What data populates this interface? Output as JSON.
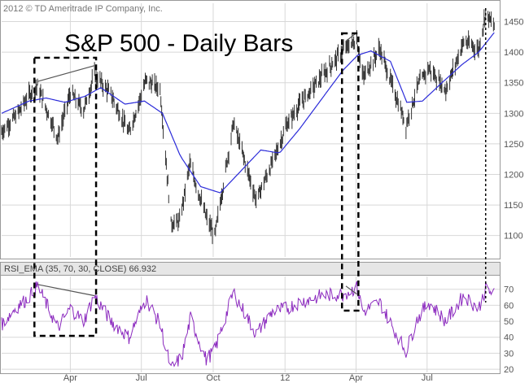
{
  "copyright": "2012 © TD Ameritrade IP Company, Inc.",
  "colors": {
    "price_bars": "#333333",
    "ema": "#2b2bd9",
    "rsi": "#8c2bbf",
    "frame": "#000000",
    "grid": "#d8d8d8"
  },
  "chart_data": [
    {
      "type": "line",
      "title": "S&P 500 - Daily Bars",
      "x_ticks": [
        "Apr",
        "Jul",
        "Oct",
        "12",
        "Apr",
        "Jul"
      ],
      "y_ticks": [
        "1450",
        "1400",
        "1350",
        "1300",
        "1250",
        "1200",
        "1150",
        "1100"
      ],
      "ylim": [
        1065,
        1480
      ],
      "grid": true,
      "series": [
        {
          "role": "close",
          "x": [
            "2011-01-03",
            "2011-01-24",
            "2011-02-07",
            "2011-02-18",
            "2011-03-16",
            "2011-04-01",
            "2011-04-18",
            "2011-05-02",
            "2011-05-23",
            "2011-06-15",
            "2011-07-07",
            "2011-07-25",
            "2011-08-08",
            "2011-08-19",
            "2011-09-01",
            "2011-09-22",
            "2011-10-03",
            "2011-10-27",
            "2011-11-25",
            "2011-12-16",
            "2012-01-03",
            "2012-01-20",
            "2012-02-17",
            "2012-03-16",
            "2012-04-02",
            "2012-04-10",
            "2012-05-01",
            "2012-06-04",
            "2012-06-19",
            "2012-07-03",
            "2012-07-25",
            "2012-08-17",
            "2012-09-05",
            "2012-09-14",
            "2012-09-25"
          ],
          "values": [
            1270,
            1300,
            1330,
            1344,
            1260,
            1333,
            1305,
            1364,
            1330,
            1268,
            1354,
            1340,
            1120,
            1123,
            1217,
            1130,
            1099,
            1285,
            1158,
            1220,
            1280,
            1315,
            1360,
            1404,
            1420,
            1358,
            1406,
            1280,
            1345,
            1374,
            1338,
            1418,
            1404,
            1465,
            1441
          ]
        },
        {
          "role": "ema",
          "x": [
            "2011-01-03",
            "2011-02-07",
            "2011-03-01",
            "2011-03-25",
            "2011-04-20",
            "2011-05-10",
            "2011-06-10",
            "2011-07-05",
            "2011-07-28",
            "2011-08-20",
            "2011-09-15",
            "2011-10-10",
            "2011-11-05",
            "2011-12-01",
            "2011-12-25",
            "2012-01-20",
            "2012-02-15",
            "2012-03-15",
            "2012-04-03",
            "2012-04-20",
            "2012-05-15",
            "2012-06-05",
            "2012-06-25",
            "2012-07-20",
            "2012-08-15",
            "2012-09-05",
            "2012-09-25"
          ],
          "values": [
            1300,
            1320,
            1325,
            1318,
            1328,
            1342,
            1315,
            1320,
            1300,
            1230,
            1180,
            1170,
            1205,
            1240,
            1235,
            1275,
            1320,
            1370,
            1395,
            1402,
            1385,
            1318,
            1320,
            1350,
            1380,
            1400,
            1432
          ]
        }
      ]
    },
    {
      "type": "line",
      "title": "RSI_EMA (35, 70, 30, CLOSE) 66.932",
      "y_ticks": [
        "70",
        "60",
        "50",
        "40",
        "30",
        "20"
      ],
      "ylim": [
        18,
        78
      ],
      "grid": true,
      "series": [
        {
          "role": "rsi",
          "x": [
            "2011-01-03",
            "2011-01-20",
            "2011-02-05",
            "2011-02-18",
            "2011-03-16",
            "2011-04-01",
            "2011-04-18",
            "2011-05-02",
            "2011-05-23",
            "2011-06-15",
            "2011-07-07",
            "2011-07-25",
            "2011-08-08",
            "2011-08-22",
            "2011-09-02",
            "2011-09-22",
            "2011-10-03",
            "2011-10-27",
            "2011-11-25",
            "2011-12-16",
            "2012-01-03",
            "2012-01-20",
            "2012-02-17",
            "2012-03-16",
            "2012-04-02",
            "2012-04-10",
            "2012-05-01",
            "2012-06-04",
            "2012-06-19",
            "2012-07-03",
            "2012-07-25",
            "2012-08-17",
            "2012-09-05",
            "2012-09-14",
            "2012-09-25"
          ],
          "values": [
            48,
            58,
            64,
            72,
            46,
            58,
            50,
            66,
            50,
            40,
            64,
            48,
            20,
            28,
            52,
            26,
            32,
            68,
            42,
            56,
            58,
            62,
            66,
            67,
            71,
            56,
            62,
            31,
            52,
            62,
            50,
            66,
            58,
            70,
            66.9
          ]
        }
      ]
    }
  ],
  "annotations": {
    "trend_lines": [
      {
        "panel": "price",
        "from": {
          "x": "2011-02-18",
          "y": 1352
        },
        "to": {
          "x": "2011-05-02",
          "y": 1378
        }
      },
      {
        "panel": "price",
        "from": {
          "x": "2012-03-19",
          "y": 1418
        },
        "to": {
          "x": "2012-04-02",
          "y": 1432
        }
      },
      {
        "panel": "rsi",
        "from": {
          "x": "2011-02-18",
          "y": 73
        },
        "to": {
          "x": "2011-05-02",
          "y": 66
        }
      },
      {
        "panel": "rsi",
        "from": {
          "x": "2012-03-19",
          "y": 72
        },
        "to": {
          "x": "2012-04-02",
          "y": 67
        }
      }
    ],
    "highlight_boxes": [
      {
        "from": "2011-02-14",
        "to": "2011-05-04"
      },
      {
        "from": "2012-03-14",
        "to": "2012-04-04"
      }
    ],
    "marker_line": "2012-09-14"
  }
}
